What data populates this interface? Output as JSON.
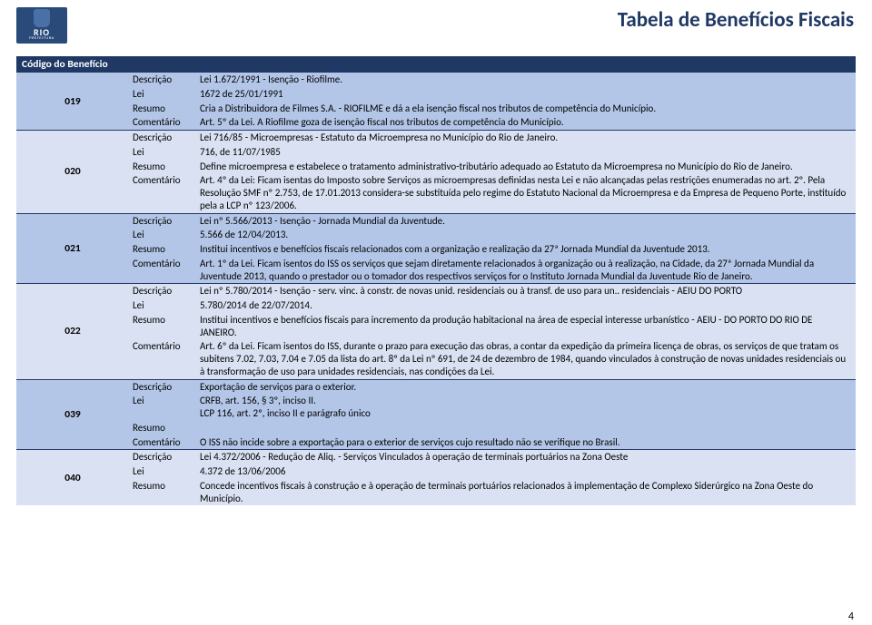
{
  "page_title": "Tabela de Benefícios Fiscais",
  "logo": {
    "text1": "RIO",
    "text2": "PREFEITURA"
  },
  "header": {
    "code": "Código do Benefício"
  },
  "labels": {
    "descricao": "Descrição",
    "lei": "Lei",
    "resumo": "Resumo",
    "comentario": "Comentário"
  },
  "colors": {
    "title": "#1f3864",
    "header_bg": "#1f3864",
    "band_a": "#b3c6e7",
    "band_b": "#d9e1f2",
    "border": "#1f3864"
  },
  "page_number": "4",
  "entries": [
    {
      "code": "019",
      "descricao": "Lei 1.672/1991 - Isenção - Riofilme.",
      "lei": "1672 de 25/01/1991",
      "resumo": "Cria a Distribuidora de Filmes S.A. - RIOFILME e dá a ela isenção fiscal nos tributos de competência do Município.",
      "comentario": "Art. 5º da Lei. A Riofilme goza de isenção fiscal nos tributos de competência do Município."
    },
    {
      "code": "020",
      "descricao": "Lei 716/85 - Microempresas - Estatuto da Microempresa no Município do Rio de Janeiro.",
      "lei": "716, de 11/07/1985",
      "resumo": "Define microempresa e estabelece o tratamento administrativo-tributário adequado ao Estatuto da Microempresa no Município do Rio de Janeiro.",
      "comentario": "Art. 4º da Lei: Ficam isentas do Imposto sobre Serviços as microempresas definidas nesta Lei e não alcançadas pelas restrições enumeradas no art. 2º. Pela Resolução SMF nº 2.753, de 17.01.2013 considera-se substituída pelo regime do Estatuto Nacional da Microempresa e da Empresa de Pequeno Porte, instituído pela a LCP nº 123/2006."
    },
    {
      "code": "021",
      "descricao": "Lei nº 5.566/2013 - Isenção - Jornada Mundial da Juventude.",
      "lei": "5.566 de 12/04/2013.",
      "resumo": "Institui incentivos e benefícios fiscais relacionados com a organização e realização da 27ª Jornada Mundial da Juventude 2013.",
      "comentario": "Art. 1º da Lei. Ficam isentos do ISS os serviços que sejam diretamente relacionados à organização ou à realização, na Cidade, da 27ª Jornada Mundial da Juventude 2013, quando o prestador ou o tomador dos respectivos serviços for o Instituto Jornada Mundial da Juventude Rio de Janeiro."
    },
    {
      "code": "022",
      "descricao": "Lei nº 5.780/2014 - Isenção - serv. vinc. à constr. de novas unid. residenciais ou à transf. de uso para un.. residenciais - AEIU DO PORTO",
      "lei": "5.780/2014 de 22/07/2014.",
      "resumo": "Institui incentivos e benefícios fiscais para incremento da produção habitacional na área de especial interesse urbanístico - AEIU - DO PORTO DO RIO DE JANEIRO.",
      "comentario": "Art. 6º da Lei. Ficam isentos do ISS, durante o prazo para execução das obras, a contar da expedição da primeira licença de obras, os serviços de que tratam os subitens 7.02, 7.03, 7.04 e 7.05 da lista do art. 8º da Lei nº 691, de 24 de dezembro de 1984, quando vinculados à construção de novas unidades residenciais ou à transformação de uso para unidades residenciais, nas condições da Lei."
    },
    {
      "code": "039",
      "descricao": "Exportação de serviços para o exterior.",
      "lei": "CRFB, art. 156, § 3º, inciso II.\nLCP 116, art. 2º, inciso II e parágrafo único",
      "resumo": "",
      "comentario": "O ISS não incide sobre a exportação para o exterior de serviços cujo resultado não se verifique no Brasil."
    },
    {
      "code": "040",
      "descricao": "Lei 4.372/2006 - Redução de Aliq. -  Serviços Vinculados à operação de terminais portuários na Zona Oeste",
      "lei": "4.372 de 13/06/2006",
      "resumo": "Concede incentivos fiscais à construção e à operação de terminais portuários relacionados à implementação de Complexo Siderúrgico na Zona Oeste do Município.",
      "comentario": null
    }
  ]
}
